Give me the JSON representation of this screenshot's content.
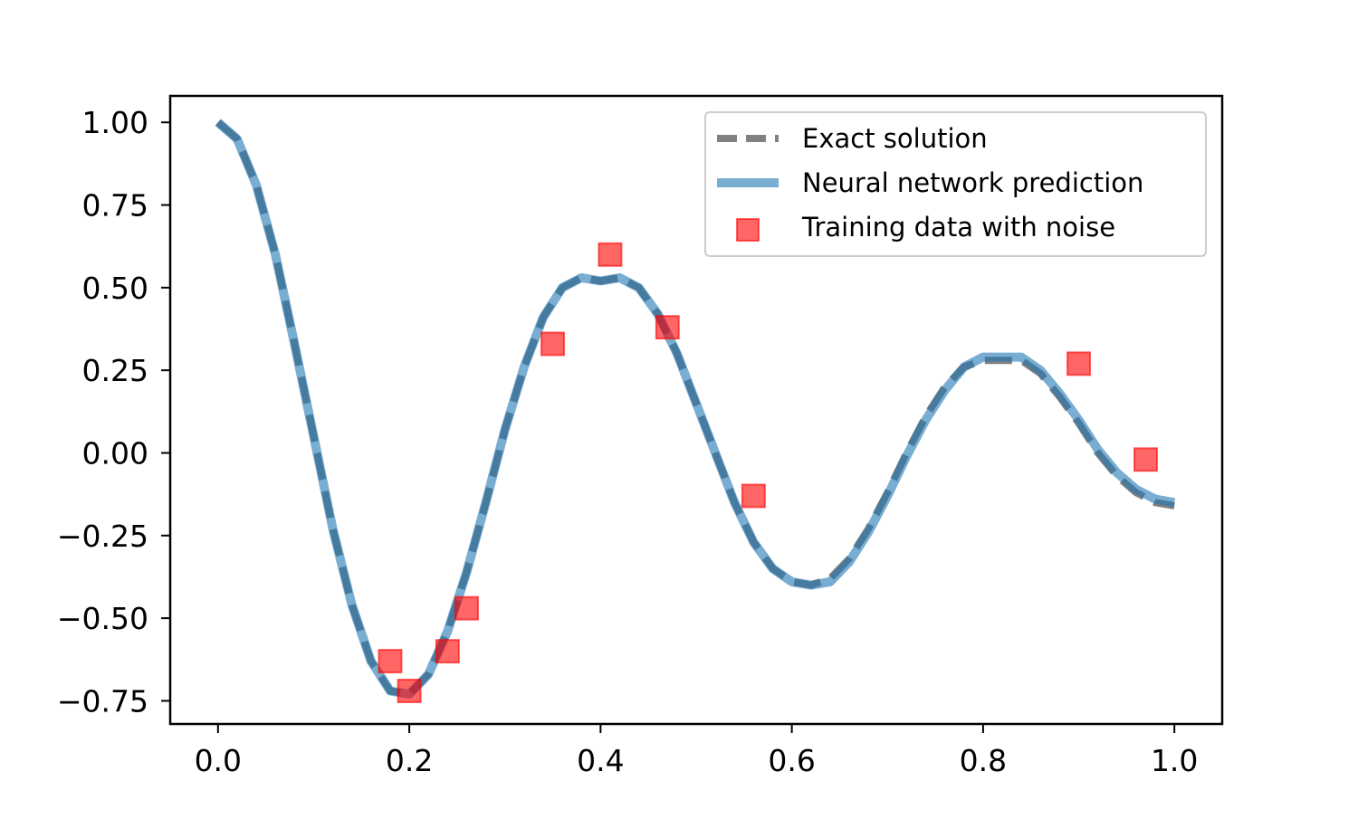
{
  "chart_data": {
    "type": "line",
    "title": "",
    "xlabel": "",
    "ylabel": "",
    "xlim": [
      -0.05,
      1.05
    ],
    "ylim": [
      -0.82,
      1.08
    ],
    "xticks": [
      0.0,
      0.2,
      0.4,
      0.6,
      0.8,
      1.0
    ],
    "xtick_labels": [
      "0.0",
      "0.2",
      "0.4",
      "0.6",
      "0.8",
      "1.0"
    ],
    "yticks": [
      1.0,
      0.75,
      0.5,
      0.25,
      0.0,
      -0.25,
      -0.5,
      -0.75
    ],
    "ytick_labels": [
      "1.00",
      "0.75",
      "0.50",
      "0.25",
      "0.00",
      "−0.25",
      "−0.50",
      "−0.75"
    ],
    "grid": false,
    "legend_position": "top-right",
    "series": [
      {
        "name": "Exact solution",
        "kind": "line",
        "style": "dashed",
        "color": "#808080",
        "x": [
          0.0,
          0.02,
          0.04,
          0.06,
          0.08,
          0.1,
          0.12,
          0.14,
          0.16,
          0.18,
          0.2,
          0.22,
          0.24,
          0.26,
          0.28,
          0.3,
          0.32,
          0.34,
          0.36,
          0.38,
          0.4,
          0.42,
          0.44,
          0.46,
          0.48,
          0.5,
          0.52,
          0.54,
          0.56,
          0.58,
          0.6,
          0.62,
          0.64,
          0.66,
          0.68,
          0.7,
          0.72,
          0.74,
          0.76,
          0.78,
          0.8,
          0.82,
          0.84,
          0.86,
          0.88,
          0.9,
          0.92,
          0.94,
          0.96,
          0.98,
          1.0
        ],
        "y": [
          1.0,
          0.95,
          0.81,
          0.6,
          0.33,
          0.05,
          -0.23,
          -0.46,
          -0.63,
          -0.72,
          -0.73,
          -0.67,
          -0.54,
          -0.36,
          -0.15,
          0.07,
          0.26,
          0.41,
          0.5,
          0.53,
          0.52,
          0.53,
          0.5,
          0.42,
          0.3,
          0.15,
          0.0,
          -0.15,
          -0.27,
          -0.35,
          -0.39,
          -0.4,
          -0.38,
          -0.32,
          -0.23,
          -0.12,
          0.0,
          0.11,
          0.2,
          0.26,
          0.28,
          0.28,
          0.28,
          0.24,
          0.17,
          0.09,
          0.0,
          -0.07,
          -0.12,
          -0.15,
          -0.16
        ]
      },
      {
        "name": "Neural network prediction",
        "kind": "line",
        "style": "solid",
        "color": "#1f77b4",
        "x": [
          0.0,
          0.02,
          0.04,
          0.06,
          0.08,
          0.1,
          0.12,
          0.14,
          0.16,
          0.18,
          0.2,
          0.22,
          0.24,
          0.26,
          0.28,
          0.3,
          0.32,
          0.34,
          0.36,
          0.38,
          0.4,
          0.42,
          0.44,
          0.46,
          0.48,
          0.5,
          0.52,
          0.54,
          0.56,
          0.58,
          0.6,
          0.62,
          0.64,
          0.66,
          0.68,
          0.7,
          0.72,
          0.74,
          0.76,
          0.78,
          0.8,
          0.82,
          0.84,
          0.86,
          0.88,
          0.9,
          0.92,
          0.94,
          0.96,
          0.98,
          1.0
        ],
        "y": [
          1.0,
          0.95,
          0.81,
          0.6,
          0.33,
          0.05,
          -0.23,
          -0.46,
          -0.63,
          -0.72,
          -0.73,
          -0.67,
          -0.54,
          -0.36,
          -0.15,
          0.07,
          0.26,
          0.41,
          0.5,
          0.53,
          0.52,
          0.53,
          0.5,
          0.42,
          0.3,
          0.15,
          0.0,
          -0.15,
          -0.27,
          -0.35,
          -0.39,
          -0.4,
          -0.39,
          -0.33,
          -0.24,
          -0.13,
          -0.01,
          0.1,
          0.19,
          0.26,
          0.29,
          0.29,
          0.29,
          0.25,
          0.18,
          0.1,
          0.01,
          -0.06,
          -0.11,
          -0.14,
          -0.15
        ]
      },
      {
        "name": "Training data with noise",
        "kind": "scatter",
        "marker": "square",
        "color": "#ff0000",
        "x": [
          0.18,
          0.2,
          0.24,
          0.26,
          0.35,
          0.41,
          0.47,
          0.56,
          0.9,
          0.97
        ],
        "y": [
          -0.63,
          -0.72,
          -0.6,
          -0.47,
          0.33,
          0.6,
          0.38,
          -0.13,
          0.27,
          -0.02
        ]
      }
    ]
  }
}
